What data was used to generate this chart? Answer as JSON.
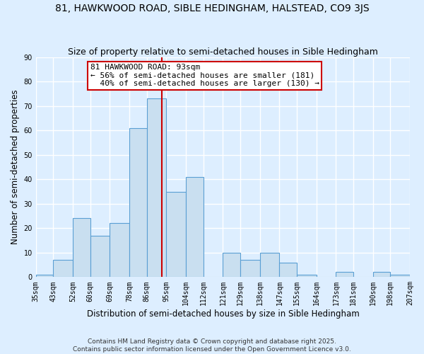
{
  "title": "81, HAWKWOOD ROAD, SIBLE HEDINGHAM, HALSTEAD, CO9 3JS",
  "subtitle": "Size of property relative to semi-detached houses in Sible Hedingham",
  "xlabel": "Distribution of semi-detached houses by size in Sible Hedingham",
  "ylabel": "Number of semi-detached properties",
  "bin_edges": [
    35,
    43,
    52,
    60,
    69,
    78,
    86,
    95,
    104,
    112,
    121,
    129,
    138,
    147,
    155,
    164,
    173,
    181,
    190,
    198,
    207
  ],
  "bin_heights": [
    1,
    7,
    24,
    17,
    22,
    61,
    73,
    35,
    41,
    0,
    10,
    7,
    10,
    6,
    1,
    0,
    2,
    0,
    2,
    1
  ],
  "bar_color": "#c9dff0",
  "bar_edge_color": "#5a9fd4",
  "property_size": 93,
  "vline_color": "#cc0000",
  "annotation_line1": "81 HAWKWOOD ROAD: 93sqm",
  "annotation_line2": "← 56% of semi-detached houses are smaller (181)",
  "annotation_line3": "  40% of semi-detached houses are larger (130) →",
  "annotation_box_color": "#ffffff",
  "annotation_box_edge": "#cc0000",
  "background_color": "#ddeeff",
  "grid_color": "#ffffff",
  "ylim": [
    0,
    90
  ],
  "yticks": [
    0,
    10,
    20,
    30,
    40,
    50,
    60,
    70,
    80,
    90
  ],
  "tick_labels": [
    "35sqm",
    "43sqm",
    "52sqm",
    "60sqm",
    "69sqm",
    "78sqm",
    "86sqm",
    "95sqm",
    "104sqm",
    "112sqm",
    "121sqm",
    "129sqm",
    "138sqm",
    "147sqm",
    "155sqm",
    "164sqm",
    "173sqm",
    "181sqm",
    "190sqm",
    "198sqm",
    "207sqm"
  ],
  "footnote": "Contains HM Land Registry data © Crown copyright and database right 2025.\nContains public sector information licensed under the Open Government Licence v3.0.",
  "title_fontsize": 10,
  "subtitle_fontsize": 9,
  "xlabel_fontsize": 8.5,
  "ylabel_fontsize": 8.5,
  "tick_fontsize": 7,
  "annotation_fontsize": 8,
  "footnote_fontsize": 6.5
}
